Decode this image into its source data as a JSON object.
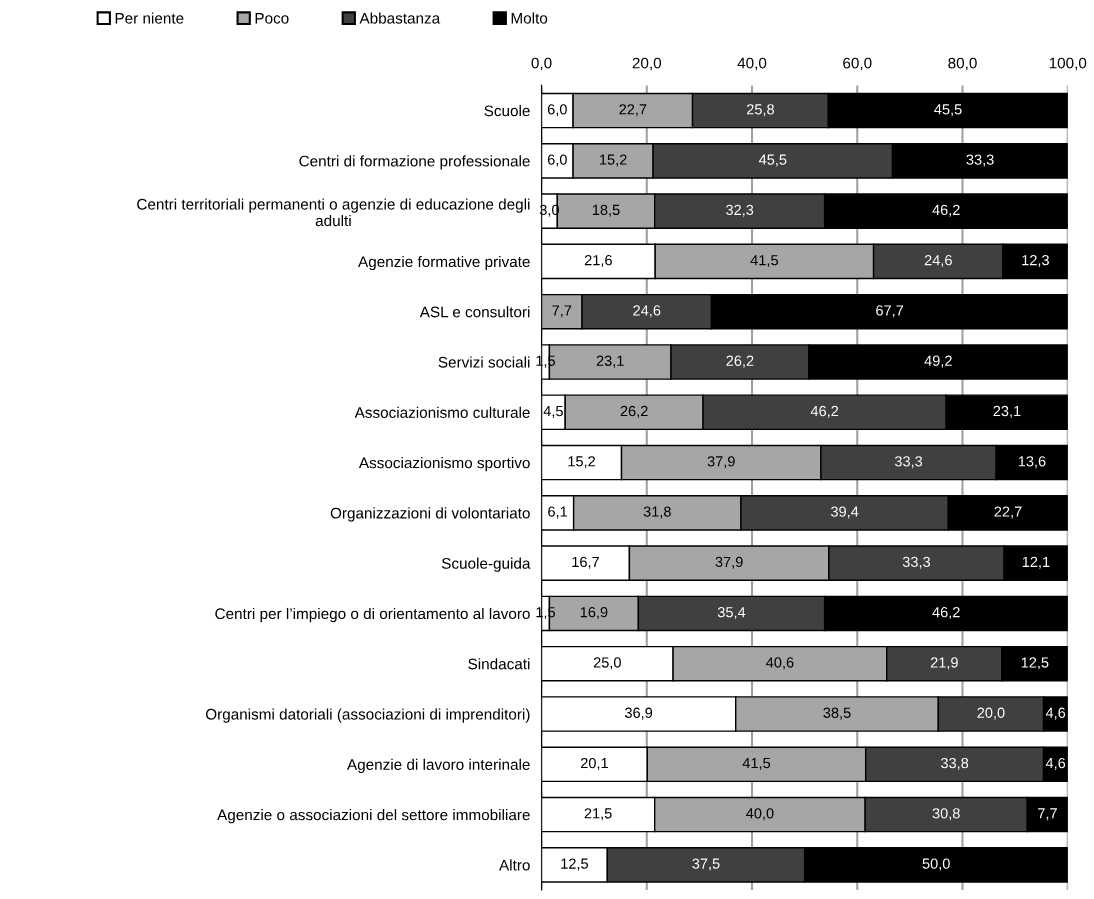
{
  "chart_data": {
    "type": "bar",
    "orientation": "horizontal",
    "stacked": true,
    "categories": [
      "Scuole",
      "Centri di formazione professionale",
      "Centri territoriali permanenti o agenzie di educazione degli\nadulti",
      "Agenzie formative private",
      "ASL e consultori",
      "Servizi sociali",
      "Associazionismo culturale",
      "Associazionismo sportivo",
      "Organizzazioni di volontariato",
      "Scuole-guida",
      "Centri per l’impiego o di orientamento al lavoro",
      "Sindacati",
      "Organismi datoriali (associazioni di imprenditori)",
      "Agenzie di lavoro interinale",
      "Agenzie o associazioni del settore immobiliare",
      "Altro"
    ],
    "series": [
      {
        "name": "Per niente",
        "color": "#ffffff",
        "values": [
          6.0,
          6.0,
          3.0,
          21.6,
          null,
          1.5,
          4.5,
          15.2,
          6.1,
          16.7,
          1.5,
          25.0,
          36.9,
          20.1,
          21.5,
          12.5
        ],
        "value_labels": [
          "6,0",
          "6,0",
          "3,0",
          "21,6",
          null,
          "1,5",
          "4,5",
          "15,2",
          "6,1",
          "16,7",
          "1,5",
          "25,0",
          "36,9",
          "20,1",
          "21,5",
          "12,5"
        ]
      },
      {
        "name": "Poco",
        "color": "#a6a6a6",
        "values": [
          22.7,
          15.2,
          18.5,
          41.5,
          7.7,
          23.1,
          26.2,
          37.9,
          31.8,
          37.9,
          16.9,
          40.6,
          38.5,
          41.5,
          40.0,
          null
        ],
        "value_labels": [
          "22,7",
          "15,2",
          "18,5",
          "41,5",
          "7,7",
          "23,1",
          "26,2",
          "37,9",
          "31,8",
          "37,9",
          "16,9",
          "40,6",
          "38,5",
          "41,5",
          "40,0",
          null
        ]
      },
      {
        "name": "Abbastanza",
        "color": "#404040",
        "values": [
          25.8,
          45.5,
          32.3,
          24.6,
          24.6,
          26.2,
          46.2,
          33.3,
          39.4,
          33.3,
          35.4,
          21.9,
          20.0,
          33.8,
          30.8,
          37.5
        ],
        "value_labels": [
          "25,8",
          "45,5",
          "32,3",
          "24,6",
          "24,6",
          "26,2",
          "46,2",
          "33,3",
          "39,4",
          "33,3",
          "35,4",
          "21,9",
          "20,0",
          "33,8",
          "30,8",
          "37,5"
        ]
      },
      {
        "name": "Molto",
        "color": "#000000",
        "values": [
          45.5,
          33.3,
          46.2,
          12.3,
          67.7,
          49.2,
          23.1,
          13.6,
          22.7,
          12.1,
          46.2,
          12.5,
          4.6,
          4.6,
          7.7,
          50.0
        ],
        "value_labels": [
          "45,5",
          "33,3",
          "46,2",
          "12,3",
          "67,7",
          "49,2",
          "23,1",
          "13,6",
          "22,7",
          "12,1",
          "46,2",
          "12,5",
          "4,6",
          "4,6",
          "7,7",
          "50,0"
        ]
      }
    ],
    "xlim": [
      0,
      100
    ],
    "xticks": [
      {
        "value": 0,
        "label": "0,0"
      },
      {
        "value": 20,
        "label": "20,0"
      },
      {
        "value": 40,
        "label": "40,0"
      },
      {
        "value": 60,
        "label": "60,0"
      },
      {
        "value": 80,
        "label": "80,0"
      },
      {
        "value": 100,
        "label": "100,0"
      }
    ],
    "grid": "x",
    "legend": "top"
  }
}
